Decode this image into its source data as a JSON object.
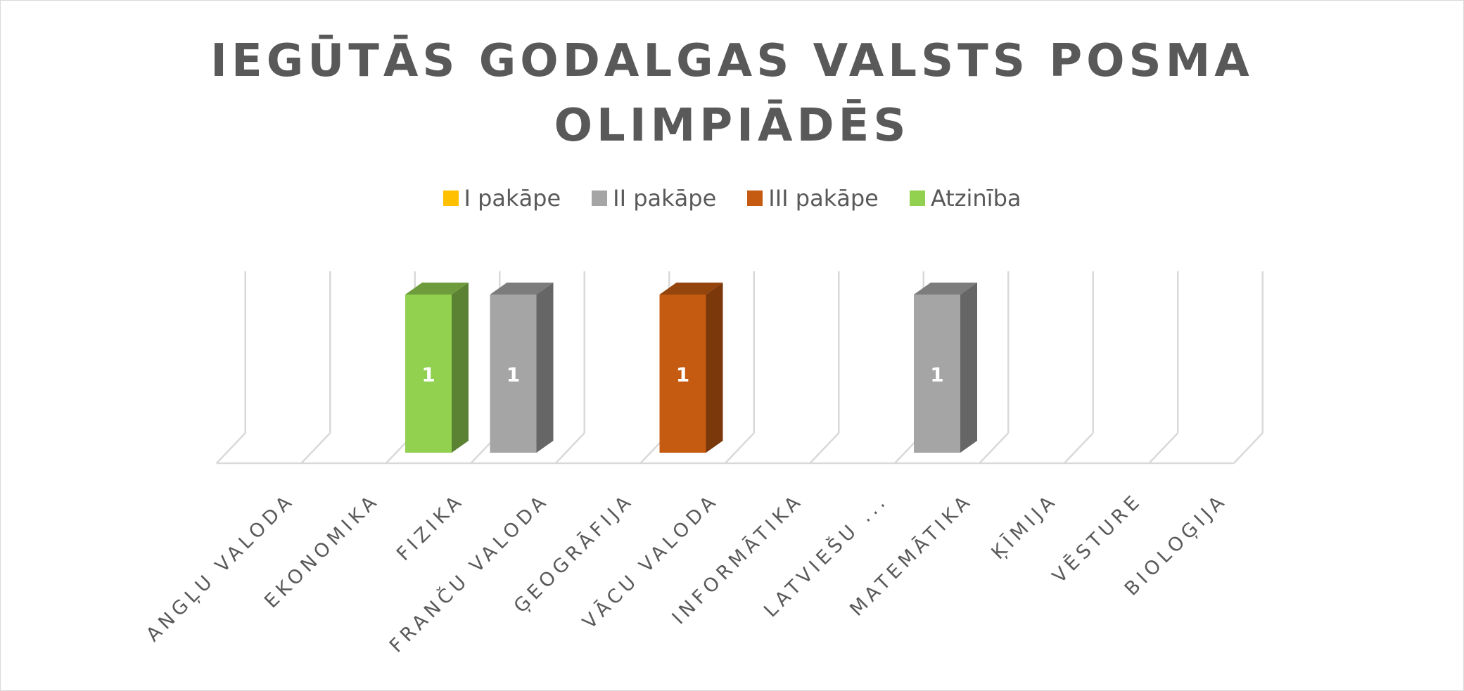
{
  "chart_data": {
    "type": "bar",
    "title_lines": [
      "IEGŪTĀS GODALGAS VALSTS POSMA",
      "OLIMPIĀDĒS"
    ],
    "categories": [
      "ANGĻU VALODA",
      "EKONOMIKA",
      "FIZIKA",
      "FRANČU VALODA",
      "ĢEOGRĀFIJA",
      "VĀCU VALODA",
      "INFORMĀTIKA",
      "LATVIEŠU ...",
      "MATEMĀTIKA",
      "ĶĪMIJA",
      "VĒSTURE",
      "BIOLOĢIJA"
    ],
    "series": [
      {
        "name": "I pakāpe",
        "color": "#ffc000",
        "values": [
          0,
          0,
          0,
          0,
          0,
          0,
          0,
          0,
          0,
          0,
          0,
          0
        ]
      },
      {
        "name": "II pakāpe",
        "color": "#a5a5a5",
        "values": [
          0,
          0,
          0,
          1,
          0,
          0,
          0,
          0,
          1,
          0,
          0,
          0
        ]
      },
      {
        "name": "III pakāpe",
        "color": "#c55a11",
        "values": [
          0,
          0,
          0,
          0,
          0,
          1,
          0,
          0,
          0,
          0,
          0,
          0
        ]
      },
      {
        "name": "Atzinība",
        "color": "#92d050",
        "values": [
          0,
          0,
          1,
          0,
          0,
          0,
          0,
          0,
          0,
          0,
          0,
          0
        ]
      }
    ],
    "ylim": [
      0,
      1
    ],
    "data_labels": true,
    "legend_position": "top",
    "gridlines": true,
    "style": "3d-column"
  }
}
